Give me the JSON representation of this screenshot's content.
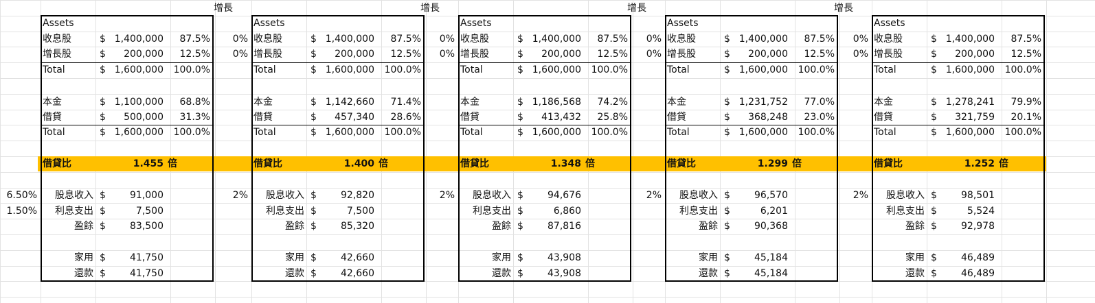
{
  "sheet": {
    "growth_label": "增長",
    "left_rates": [
      "6.50%",
      "1.50%"
    ],
    "labels": {
      "assets": "Assets",
      "dividend_stock": "收息股",
      "growth_stock": "增長股",
      "total": "Total",
      "principal": "本金",
      "loan": "借貸",
      "leverage": "借貸比",
      "times": "倍",
      "dividend_income": "股息收入",
      "interest_expense": "利息支出",
      "surplus": "盈餘",
      "household": "家用",
      "repayment": "還款",
      "currency": "$"
    },
    "blocks": [
      {
        "growth_pcts": [
          "",
          ""
        ],
        "income_growth": "",
        "dividend": {
          "amount": "1,400,000",
          "pct": "87.5%"
        },
        "growth": {
          "amount": "200,000",
          "pct": "12.5%"
        },
        "assets_total": {
          "amount": "1,600,000",
          "pct": "100.0%"
        },
        "principal": {
          "amount": "1,100,000",
          "pct": "68.8%"
        },
        "loan": {
          "amount": "500,000",
          "pct": "31.3%"
        },
        "funding_total": {
          "amount": "1,600,000",
          "pct": "100.0%"
        },
        "leverage_value": "1.455",
        "dividend_income": "91,000",
        "interest": "7,500",
        "surplus": "83,500",
        "household": "41,750",
        "repayment": "41,750"
      },
      {
        "growth_pcts": [
          "0%",
          "0%"
        ],
        "income_growth": "2%",
        "dividend": {
          "amount": "1,400,000",
          "pct": "87.5%"
        },
        "growth": {
          "amount": "200,000",
          "pct": "12.5%"
        },
        "assets_total": {
          "amount": "1,600,000",
          "pct": "100.0%"
        },
        "principal": {
          "amount": "1,142,660",
          "pct": "71.4%"
        },
        "loan": {
          "amount": "457,340",
          "pct": "28.6%"
        },
        "funding_total": {
          "amount": "1,600,000",
          "pct": "100.0%"
        },
        "leverage_value": "1.400",
        "dividend_income": "92,820",
        "interest": "7,500",
        "surplus": "85,320",
        "household": "42,660",
        "repayment": "42,660"
      },
      {
        "growth_pcts": [
          "0%",
          "0%"
        ],
        "income_growth": "2%",
        "dividend": {
          "amount": "1,400,000",
          "pct": "87.5%"
        },
        "growth": {
          "amount": "200,000",
          "pct": "12.5%"
        },
        "assets_total": {
          "amount": "1,600,000",
          "pct": "100.0%"
        },
        "principal": {
          "amount": "1,186,568",
          "pct": "74.2%"
        },
        "loan": {
          "amount": "413,432",
          "pct": "25.8%"
        },
        "funding_total": {
          "amount": "1,600,000",
          "pct": "100.0%"
        },
        "leverage_value": "1.348",
        "dividend_income": "94,676",
        "interest": "6,860",
        "surplus": "87,816",
        "household": "43,908",
        "repayment": "43,908"
      },
      {
        "growth_pcts": [
          "0%",
          "0%"
        ],
        "income_growth": "2%",
        "dividend": {
          "amount": "1,400,000",
          "pct": "87.5%"
        },
        "growth": {
          "amount": "200,000",
          "pct": "12.5%"
        },
        "assets_total": {
          "amount": "1,600,000",
          "pct": "100.0%"
        },
        "principal": {
          "amount": "1,231,752",
          "pct": "77.0%"
        },
        "loan": {
          "amount": "368,248",
          "pct": "23.0%"
        },
        "funding_total": {
          "amount": "1,600,000",
          "pct": "100.0%"
        },
        "leverage_value": "1.299",
        "dividend_income": "96,570",
        "interest": "6,201",
        "surplus": "90,368",
        "household": "45,184",
        "repayment": "45,184"
      },
      {
        "growth_pcts": [
          "0%",
          "0%"
        ],
        "income_growth": "2%",
        "dividend": {
          "amount": "1,400,000",
          "pct": "87.5%"
        },
        "growth": {
          "amount": "200,000",
          "pct": "12.5%"
        },
        "assets_total": {
          "amount": "1,600,000",
          "pct": "100.0%"
        },
        "principal": {
          "amount": "1,278,241",
          "pct": "79.9%"
        },
        "loan": {
          "amount": "321,759",
          "pct": "20.1%"
        },
        "funding_total": {
          "amount": "1,600,000",
          "pct": "100.0%"
        },
        "leverage_value": "1.252",
        "dividend_income": "98,501",
        "interest": "5,524",
        "surplus": "92,978",
        "household": "46,489",
        "repayment": "46,489"
      }
    ]
  }
}
